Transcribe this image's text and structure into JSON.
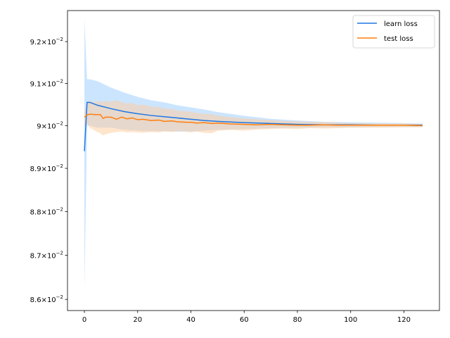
{
  "chart_data": {
    "type": "line",
    "title": "",
    "xlabel": "",
    "ylabel": "",
    "yscale": "log",
    "xlim": [
      -6.35,
      133.35
    ],
    "ylim": [
      0.08575,
      0.09275
    ],
    "grid": false,
    "legend_position": "top-right",
    "x_ticks": [
      0,
      20,
      40,
      60,
      80,
      100,
      120
    ],
    "y_ticks": [
      {
        "mantissa": "8.6",
        "value": 0.086
      },
      {
        "mantissa": "8.7",
        "value": 0.087
      },
      {
        "mantissa": "8.8",
        "value": 0.088
      },
      {
        "mantissa": "8.9",
        "value": 0.089
      },
      {
        "mantissa": "9",
        "value": 0.09
      },
      {
        "mantissa": "9.1",
        "value": 0.091
      },
      {
        "mantissa": "9.2",
        "value": 0.092
      }
    ],
    "y_tick_suffix": "×10",
    "y_tick_exponent": "−2",
    "series": [
      {
        "name": "learn loss",
        "color": "#1f77e4",
        "band_color": "#99ccff",
        "x": [
          0,
          1,
          2,
          5,
          10,
          15,
          20,
          25,
          30,
          35,
          40,
          45,
          50,
          60,
          70,
          80,
          90,
          100,
          110,
          120,
          127
        ],
        "y": [
          0.0894,
          0.09055,
          0.09055,
          0.09048,
          0.0904,
          0.09033,
          0.09028,
          0.09024,
          0.09021,
          0.09018,
          0.09015,
          0.09012,
          0.0901,
          0.09007,
          0.09005,
          0.09003,
          0.09002,
          0.09002,
          0.09001,
          0.09001,
          0.09001
        ],
        "lower": [
          0.0862,
          0.09,
          0.09,
          0.08995,
          0.08995,
          0.0899,
          0.08988,
          0.08987,
          0.08987,
          0.08986,
          0.08986,
          0.08988,
          0.0899,
          0.08992,
          0.08994,
          0.08995,
          0.08996,
          0.08996,
          0.08997,
          0.08997,
          0.08997
        ],
        "upper": [
          0.09255,
          0.0911,
          0.0911,
          0.09105,
          0.0909,
          0.09078,
          0.09068,
          0.0906,
          0.09055,
          0.09048,
          0.09043,
          0.09038,
          0.09032,
          0.09023,
          0.09016,
          0.09012,
          0.09009,
          0.09008,
          0.09007,
          0.09006,
          0.09005
        ]
      },
      {
        "name": "test loss",
        "color": "#ff7f0e",
        "band_color": "#ffcc99",
        "x": [
          0,
          1,
          2,
          4,
          6,
          7,
          8,
          10,
          12,
          14,
          16,
          18,
          20,
          22,
          25,
          28,
          30,
          33,
          35,
          38,
          40,
          42,
          45,
          48,
          50,
          55,
          60,
          65,
          70,
          75,
          80,
          85,
          90,
          95,
          100,
          110,
          120,
          127
        ],
        "y": [
          0.0902,
          0.09025,
          0.09027,
          0.09026,
          0.09026,
          0.09017,
          0.0902,
          0.0902,
          0.09015,
          0.0902,
          0.09016,
          0.09018,
          0.09014,
          0.09015,
          0.09012,
          0.09013,
          0.0901,
          0.09011,
          0.09009,
          0.09008,
          0.09008,
          0.09006,
          0.09007,
          0.09005,
          0.09006,
          0.09004,
          0.09003,
          0.09002,
          0.09003,
          0.09002,
          0.09001,
          0.09001,
          0.09002,
          0.09001,
          0.09001,
          0.09001,
          0.09001,
          0.09
        ],
        "lower": [
          0.09,
          0.09005,
          0.08995,
          0.08988,
          0.08982,
          0.08977,
          0.0898,
          0.08983,
          0.08985,
          0.08986,
          0.08984,
          0.08985,
          0.08984,
          0.08983,
          0.08985,
          0.08984,
          0.08986,
          0.08985,
          0.08987,
          0.08986,
          0.08984,
          0.08986,
          0.08983,
          0.08982,
          0.08988,
          0.0899,
          0.08988,
          0.08991,
          0.08992,
          0.08993,
          0.08992,
          0.08994,
          0.08993,
          0.08994,
          0.08995,
          0.08995,
          0.08996,
          0.08996
        ],
        "upper": [
          0.0903,
          0.09055,
          0.09058,
          0.09056,
          0.09058,
          0.09055,
          0.0906,
          0.09056,
          0.0906,
          0.09056,
          0.09052,
          0.09054,
          0.09048,
          0.0905,
          0.09045,
          0.09044,
          0.0904,
          0.09039,
          0.09035,
          0.09034,
          0.09033,
          0.0903,
          0.09028,
          0.09027,
          0.09024,
          0.0902,
          0.09017,
          0.09015,
          0.09013,
          0.09011,
          0.0901,
          0.09009,
          0.09008,
          0.09007,
          0.09006,
          0.09005,
          0.09005,
          0.09004
        ]
      }
    ]
  }
}
